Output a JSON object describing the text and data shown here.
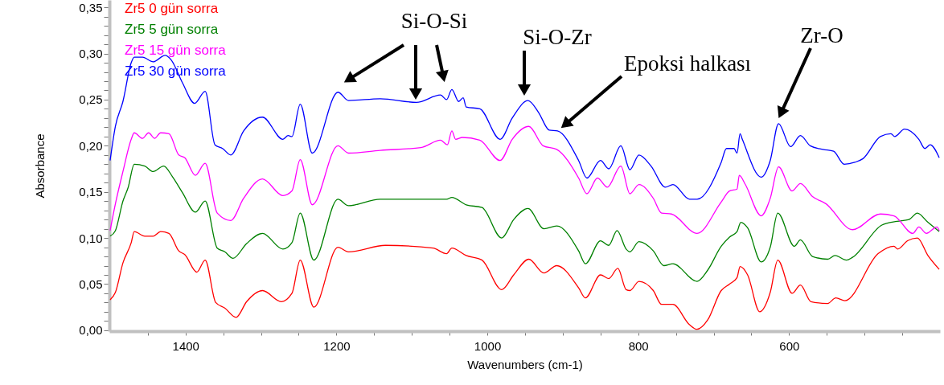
{
  "chart_data": {
    "type": "line",
    "xlabel": "Wavenumbers (cm-1)",
    "ylabel": "Absorbance",
    "xlim": [
      1501,
      400
    ],
    "ylim": [
      -0.001,
      0.358
    ],
    "xticks": [
      {
        "value": 1450,
        "label": null
      },
      1400,
      {
        "value": 1350,
        "label": null
      },
      {
        "value": 1300,
        "label": null
      },
      {
        "value": 1250,
        "label": null
      },
      1200,
      {
        "value": 1150,
        "label": null
      },
      {
        "value": 1100,
        "label": null
      },
      {
        "value": 1050,
        "label": null
      },
      1000,
      {
        "value": 950,
        "label": null
      },
      {
        "value": 900,
        "label": null
      },
      {
        "value": 850,
        "label": null
      },
      800,
      {
        "value": 750,
        "label": null
      },
      {
        "value": 700,
        "label": null
      },
      {
        "value": 650,
        "label": null
      },
      600,
      {
        "value": 550,
        "label": null
      },
      {
        "value": 500,
        "label": null
      },
      {
        "value": 450,
        "label": null
      }
    ],
    "yticks": [
      {
        "value": 0,
        "label": "0,00"
      },
      {
        "value": 0.01,
        "label": null
      },
      {
        "value": 0.02,
        "label": null
      },
      {
        "value": 0.03,
        "label": null
      },
      {
        "value": 0.04,
        "label": null
      },
      {
        "value": 0.05,
        "label": "0,05"
      },
      {
        "value": 0.06,
        "label": null
      },
      {
        "value": 0.07,
        "label": null
      },
      {
        "value": 0.08,
        "label": null
      },
      {
        "value": 0.09,
        "label": null
      },
      {
        "value": 0.1,
        "label": "0,10"
      },
      {
        "value": 0.11,
        "label": null
      },
      {
        "value": 0.12,
        "label": null
      },
      {
        "value": 0.13,
        "label": null
      },
      {
        "value": 0.14,
        "label": null
      },
      {
        "value": 0.15,
        "label": "0,15"
      },
      {
        "value": 0.16,
        "label": null
      },
      {
        "value": 0.17,
        "label": null
      },
      {
        "value": 0.18,
        "label": null
      },
      {
        "value": 0.19,
        "label": null
      },
      {
        "value": 0.2,
        "label": "0,20"
      },
      {
        "value": 0.21,
        "label": null
      },
      {
        "value": 0.22,
        "label": null
      },
      {
        "value": 0.23,
        "label": null
      },
      {
        "value": 0.24,
        "label": null
      },
      {
        "value": 0.25,
        "label": "0,25"
      },
      {
        "value": 0.26,
        "label": null
      },
      {
        "value": 0.27,
        "label": null
      },
      {
        "value": 0.28,
        "label": null
      },
      {
        "value": 0.29,
        "label": null
      },
      {
        "value": 0.3,
        "label": "0,30"
      },
      {
        "value": 0.31,
        "label": null
      },
      {
        "value": 0.32,
        "label": null
      },
      {
        "value": 0.33,
        "label": null
      },
      {
        "value": 0.34,
        "label": null
      },
      {
        "value": 0.35,
        "label": "0,35"
      }
    ],
    "legend": "top left",
    "annotations": [
      "Si-O-Si",
      "Si-O-Zr",
      "Epoksi halkası",
      "Zr-O"
    ],
    "series": [
      {
        "name": "Zr5 0 gün sorra",
        "color": "#ff0000",
        "x": [
          1500,
          1493,
          1483,
          1472,
          1468,
          1454,
          1443,
          1433,
          1422,
          1409,
          1401,
          1385,
          1374,
          1360,
          1348,
          1333,
          1319,
          1298,
          1273,
          1259,
          1248,
          1230,
          1198,
          1184,
          1135,
          1072,
          1054,
          1047,
          1028,
          1007,
          981,
          965,
          945,
          925,
          908,
          879,
          870,
          850,
          839,
          827,
          816,
          811,
          799,
          780,
          769,
          754,
          732,
          722,
          708,
          690,
          679,
          669,
          665,
          655,
          639,
          625,
          615,
          596,
          585,
          571,
          549,
          538,
          526,
          482,
          461,
          456,
          443,
          430,
          416,
          401
        ],
        "values": [
          0.033,
          0.041,
          0.073,
          0.095,
          0.107,
          0.102,
          0.102,
          0.107,
          0.105,
          0.086,
          0.082,
          0.063,
          0.076,
          0.03,
          0.024,
          0.014,
          0.031,
          0.043,
          0.031,
          0.04,
          0.076,
          0.025,
          0.09,
          0.085,
          0.092,
          0.089,
          0.083,
          0.089,
          0.081,
          0.076,
          0.044,
          0.06,
          0.077,
          0.062,
          0.07,
          0.046,
          0.035,
          0.06,
          0.056,
          0.067,
          0.044,
          0.043,
          0.053,
          0.043,
          0.028,
          0.028,
          0.006,
          0.001,
          0.011,
          0.043,
          0.05,
          0.057,
          0.069,
          0.06,
          0.02,
          0.041,
          0.076,
          0.04,
          0.049,
          0.031,
          0.029,
          0.035,
          0.032,
          0.083,
          0.091,
          0.088,
          0.097,
          0.1,
          0.081,
          0.066
        ]
      },
      {
        "name": "Zr5 5 gün sorra",
        "color": "#008000",
        "x": [
          1500,
          1493,
          1483,
          1476,
          1468,
          1454,
          1443,
          1429,
          1417,
          1404,
          1387,
          1374,
          1358,
          1348,
          1337,
          1319,
          1298,
          1271,
          1259,
          1248,
          1230,
          1198,
          1184,
          1142,
          1088,
          1054,
          1047,
          1028,
          1007,
          981,
          965,
          946,
          925,
          908,
          879,
          870,
          850,
          839,
          828,
          816,
          811,
          799,
          780,
          766,
          754,
          722,
          708,
          690,
          679,
          669,
          664,
          655,
          637,
          625,
          615,
          593,
          585,
          569,
          549,
          539,
          524,
          516,
          477,
          457,
          441,
          430,
          416,
          401
        ],
        "values": [
          0.102,
          0.108,
          0.14,
          0.155,
          0.18,
          0.178,
          0.172,
          0.178,
          0.166,
          0.149,
          0.128,
          0.14,
          0.089,
          0.085,
          0.078,
          0.094,
          0.105,
          0.088,
          0.095,
          0.127,
          0.076,
          0.142,
          0.135,
          0.142,
          0.142,
          0.142,
          0.144,
          0.136,
          0.133,
          0.1,
          0.12,
          0.132,
          0.11,
          0.113,
          0.086,
          0.072,
          0.097,
          0.092,
          0.108,
          0.088,
          0.085,
          0.096,
          0.086,
          0.07,
          0.072,
          0.053,
          0.065,
          0.091,
          0.101,
          0.107,
          0.117,
          0.111,
          0.074,
          0.09,
          0.127,
          0.091,
          0.098,
          0.08,
          0.077,
          0.081,
          0.076,
          0.079,
          0.114,
          0.118,
          0.12,
          0.127,
          0.117,
          0.107
        ]
      },
      {
        "name": "Zr5 15 gün sorra",
        "color": "#ff00ff",
        "x": [
          1500,
          1493,
          1483,
          1472,
          1468,
          1457,
          1449,
          1441,
          1433,
          1422,
          1409,
          1401,
          1387,
          1374,
          1358,
          1340,
          1323,
          1298,
          1271,
          1259,
          1248,
          1232,
          1198,
          1184,
          1142,
          1088,
          1062,
          1053,
          1047,
          1042,
          1033,
          1010,
          983,
          967,
          945,
          926,
          908,
          879,
          868,
          854,
          841,
          823,
          811,
          799,
          780,
          769,
          756,
          722,
          690,
          679,
          669,
          666,
          658,
          637,
          625,
          614,
          596,
          585,
          569,
          551,
          516,
          479,
          461,
          436,
          428,
          418,
          404,
          401
        ],
        "values": [
          0.108,
          0.137,
          0.172,
          0.207,
          0.214,
          0.208,
          0.214,
          0.208,
          0.214,
          0.213,
          0.19,
          0.187,
          0.168,
          0.181,
          0.127,
          0.119,
          0.143,
          0.164,
          0.146,
          0.151,
          0.185,
          0.136,
          0.2,
          0.192,
          0.195,
          0.198,
          0.206,
          0.201,
          0.216,
          0.207,
          0.209,
          0.206,
          0.184,
          0.207,
          0.221,
          0.2,
          0.196,
          0.165,
          0.148,
          0.165,
          0.155,
          0.178,
          0.148,
          0.158,
          0.143,
          0.127,
          0.126,
          0.105,
          0.139,
          0.151,
          0.153,
          0.168,
          0.158,
          0.124,
          0.143,
          0.177,
          0.151,
          0.159,
          0.145,
          0.137,
          0.109,
          0.126,
          0.124,
          0.105,
          0.112,
          0.105,
          0.112,
          0.108
        ]
      },
      {
        "name": "Zr5 30 gün sorra",
        "color": "#0000ff",
        "x": [
          1500,
          1493,
          1483,
          1472,
          1468,
          1457,
          1443,
          1427,
          1419,
          1404,
          1388,
          1374,
          1361,
          1351,
          1340,
          1323,
          1298,
          1271,
          1264,
          1259,
          1248,
          1232,
          1198,
          1184,
          1142,
          1094,
          1062,
          1054,
          1047,
          1038,
          1032,
          1028,
          1010,
          983,
          967,
          946,
          932,
          918,
          907,
          879,
          868,
          850,
          839,
          823,
          811,
          799,
          783,
          764,
          754,
          732,
          722,
          690,
          683,
          673,
          669,
          665,
          662,
          637,
          625,
          614,
          598,
          585,
          572,
          555,
          541,
          527,
          513,
          502,
          479,
          465,
          460,
          447,
          428,
          420,
          413,
          401
        ],
        "values": [
          0.184,
          0.221,
          0.248,
          0.29,
          0.296,
          0.296,
          0.291,
          0.298,
          0.293,
          0.268,
          0.246,
          0.259,
          0.201,
          0.197,
          0.19,
          0.216,
          0.231,
          0.207,
          0.211,
          0.21,
          0.245,
          0.192,
          0.258,
          0.249,
          0.251,
          0.247,
          0.255,
          0.25,
          0.261,
          0.248,
          0.252,
          0.242,
          0.24,
          0.207,
          0.23,
          0.249,
          0.236,
          0.217,
          0.216,
          0.184,
          0.165,
          0.184,
          0.175,
          0.2,
          0.174,
          0.19,
          0.178,
          0.155,
          0.158,
          0.142,
          0.142,
          0.182,
          0.197,
          0.197,
          0.192,
          0.213,
          0.207,
          0.166,
          0.184,
          0.224,
          0.199,
          0.211,
          0.2,
          0.196,
          0.194,
          0.18,
          0.182,
          0.186,
          0.21,
          0.213,
          0.21,
          0.218,
          0.207,
          0.197,
          0.201,
          0.187
        ]
      }
    ]
  }
}
